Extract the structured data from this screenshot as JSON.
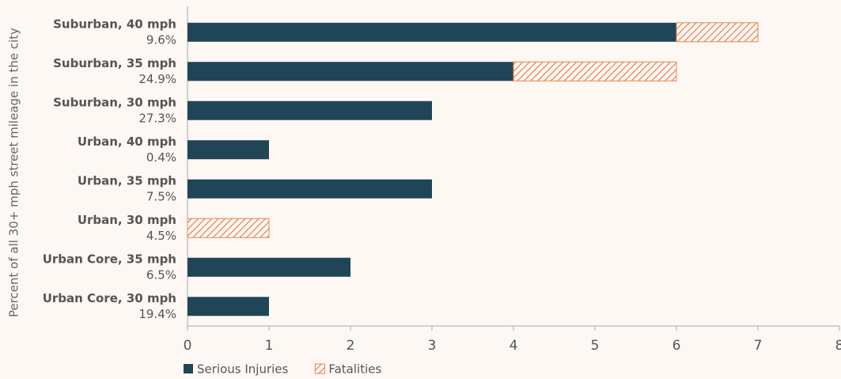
{
  "chart_data": {
    "type": "barh_stacked",
    "y_axis_label": "Percent of all 30+ mph street mileage in the city",
    "categories": [
      "Suburban, 40 mph",
      "Suburban, 35 mph",
      "Suburban, 30 mph",
      "Urban, 40 mph",
      "Urban, 35 mph",
      "Urban, 30 mph",
      "Urban Core, 35 mph",
      "Urban Core, 30 mph"
    ],
    "category_sublabels": [
      "9.6%",
      "24.9%",
      "27.3%",
      "0.4%",
      "7.5%",
      "4.5%",
      "6.5%",
      "19.4%"
    ],
    "series": [
      {
        "name": "Serious Injuries",
        "color": "#1f4557",
        "pattern": "solid",
        "values": [
          6,
          4,
          3,
          1,
          3,
          0,
          2,
          1
        ]
      },
      {
        "name": "Fatalities",
        "color": "#e8834e",
        "pattern": "hatch",
        "values": [
          1,
          2,
          0,
          0,
          0,
          1,
          0,
          0
        ]
      }
    ],
    "xlim": [
      0,
      8
    ],
    "xticks": [
      0,
      1,
      2,
      3,
      4,
      5,
      6,
      7,
      8
    ],
    "legend": "bottom-left"
  }
}
